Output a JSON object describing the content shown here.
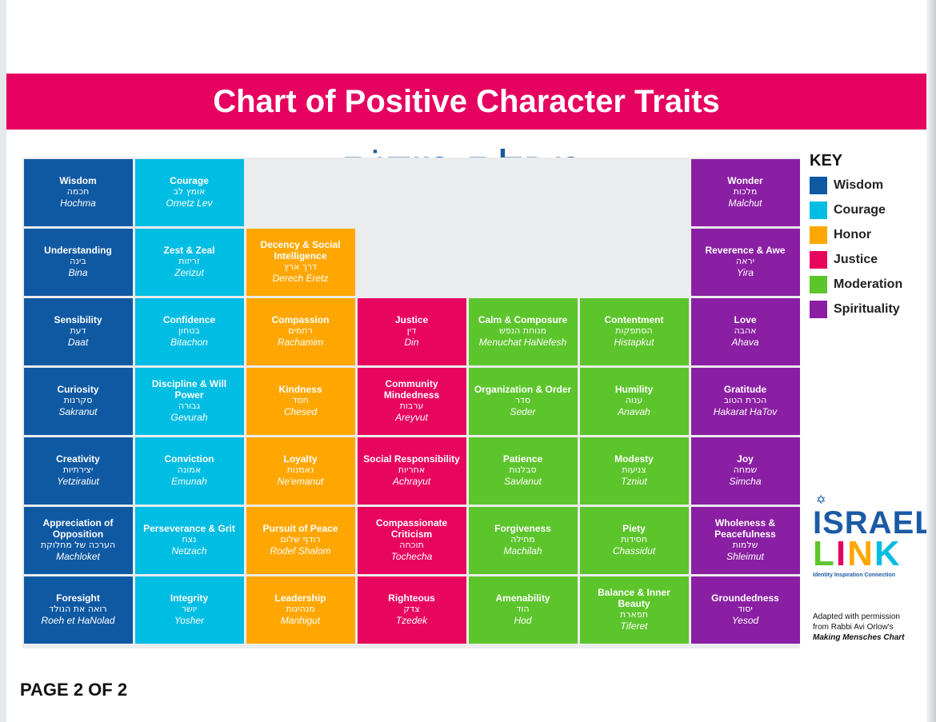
{
  "title": "Chart of Positive Character Traits",
  "hebrew_title": "טַבְלַת מִידוֹת",
  "colors": {
    "banner": "#e6005f",
    "hebrew_title": "#1a5a9c",
    "Wisdom": "#0f59a3",
    "Courage": "#00bde3",
    "Honor": "#ffa700",
    "Justice": "#e8055e",
    "Moderation": "#5dc52c",
    "Spirituality": "#8a1fa3"
  },
  "key": {
    "title": "KEY",
    "items": [
      "Wisdom",
      "Courage",
      "Honor",
      "Justice",
      "Moderation",
      "Spirituality"
    ]
  },
  "columns": [
    {
      "category": "Wisdom",
      "start_row": 0,
      "traits": [
        {
          "en": "Wisdom",
          "he": "חכמה",
          "tr": "Hochma"
        },
        {
          "en": "Understanding",
          "he": "בינה",
          "tr": "Bina"
        },
        {
          "en": "Sensibility",
          "he": "דעת",
          "tr": "Daat"
        },
        {
          "en": "Curiosity",
          "he": "סקרנות",
          "tr": "Sakranut"
        },
        {
          "en": "Creativity",
          "he": "יצירתיות",
          "tr": "Yetziratiut"
        },
        {
          "en": "Appreciation of Opposition",
          "he": "הערכה של מחלוקת",
          "tr": "Machloket"
        },
        {
          "en": "Foresight",
          "he": "רואה את הנולד",
          "tr": "Roeh et HaNolad"
        }
      ]
    },
    {
      "category": "Courage",
      "start_row": 0,
      "traits": [
        {
          "en": "Courage",
          "he": "אומץ לב",
          "tr": "Ometz Lev"
        },
        {
          "en": "Zest & Zeal",
          "he": "זריזות",
          "tr": "Zerizut"
        },
        {
          "en": "Confidence",
          "he": "בטחון",
          "tr": "Bitachon"
        },
        {
          "en": "Discipline & Will Power",
          "he": "גבורה",
          "tr": "Gevurah"
        },
        {
          "en": "Conviction",
          "he": "אמונה",
          "tr": "Emunah"
        },
        {
          "en": "Perseverance & Grit",
          "he": "נצח",
          "tr": "Netzach"
        },
        {
          "en": "Integrity",
          "he": "יושר",
          "tr": "Yosher"
        }
      ]
    },
    {
      "category": "Honor",
      "start_row": 1,
      "traits": [
        {
          "en": "Decency & Social Intelligence",
          "he": "דרך ארץ",
          "tr": "Derech Eretz"
        },
        {
          "en": "Compassion",
          "he": "רחמים",
          "tr": "Rachamim"
        },
        {
          "en": "Kindness",
          "he": "חסד",
          "tr": "Chesed"
        },
        {
          "en": "Loyalty",
          "he": "נאמנות",
          "tr": "Ne'emanut"
        },
        {
          "en": "Pursuit of Peace",
          "he": "רודף שלום",
          "tr": "Rodef Shalom"
        },
        {
          "en": "Leadership",
          "he": "מנהיגות",
          "tr": "Manhigut"
        }
      ]
    },
    {
      "category": "Justice",
      "start_row": 2,
      "traits": [
        {
          "en": "Justice",
          "he": "דין",
          "tr": "Din"
        },
        {
          "en": "Community Mindedness",
          "he": "ערבות",
          "tr": "Areyvut"
        },
        {
          "en": "Social Responsibility",
          "he": "אחריות",
          "tr": "Achrayut"
        },
        {
          "en": "Compassionate Criticism",
          "he": "תוכחה",
          "tr": "Tochecha"
        },
        {
          "en": "Righteous",
          "he": "צדק",
          "tr": "Tzedek"
        }
      ]
    },
    {
      "category": "Moderation",
      "start_row": 2,
      "traits": [
        {
          "en": "Calm & Composure",
          "he": "מנוחת הנפש",
          "tr": "Menuchat HaNefesh"
        },
        {
          "en": "Organization & Order",
          "he": "סדר",
          "tr": "Seder"
        },
        {
          "en": "Patience",
          "he": "סבלנות",
          "tr": "Savlanut"
        },
        {
          "en": "Forgiveness",
          "he": "מחילה",
          "tr": "Machilah"
        },
        {
          "en": "Amenability",
          "he": "הוד",
          "tr": "Hod"
        }
      ]
    },
    {
      "category": "Moderation",
      "start_row": 2,
      "traits": [
        {
          "en": "Contentment",
          "he": "הסתפקות",
          "tr": "Histapkut"
        },
        {
          "en": "Humility",
          "he": "ענוה",
          "tr": "Anavah"
        },
        {
          "en": "Modesty",
          "he": "צניעות",
          "tr": "Tzniut"
        },
        {
          "en": "Piety",
          "he": "חסידות",
          "tr": "Chassidut"
        },
        {
          "en": "Balance & Inner Beauty",
          "he": "תפארת",
          "tr": "Tiferet"
        }
      ]
    },
    {
      "category": "Spirituality",
      "start_row": 0,
      "traits": [
        {
          "en": "Wonder",
          "he": "מלכות",
          "tr": "Malchut"
        },
        {
          "en": "Reverence & Awe",
          "he": "יראה",
          "tr": "Yira"
        },
        {
          "en": "Love",
          "he": "אהבה",
          "tr": "Ahava"
        },
        {
          "en": "Gratitude",
          "he": "הכרת הטוב",
          "tr": "Hakarat HaTov"
        },
        {
          "en": "Joy",
          "he": "שמחה",
          "tr": "Simcha"
        },
        {
          "en": "Wholeness & Peacefulness",
          "he": "שלמות",
          "tr": "Shleimut"
        },
        {
          "en": "Groundedness",
          "he": "יסוד",
          "tr": "Yesod"
        }
      ]
    }
  ],
  "logo": {
    "word1": "ISRAEL",
    "word2": "LINK",
    "tagline": "Identity  Inspiration  Connection",
    "word2_colors": [
      "#5dc52c",
      "#e6005f",
      "#ffa700",
      "#00bde3"
    ]
  },
  "credit": {
    "line1": "Adapted with permission",
    "line2": "from Rabbi Avi Orlow's",
    "line3": "Making Mensches Chart"
  },
  "footer": "PAGE 2 OF 2"
}
